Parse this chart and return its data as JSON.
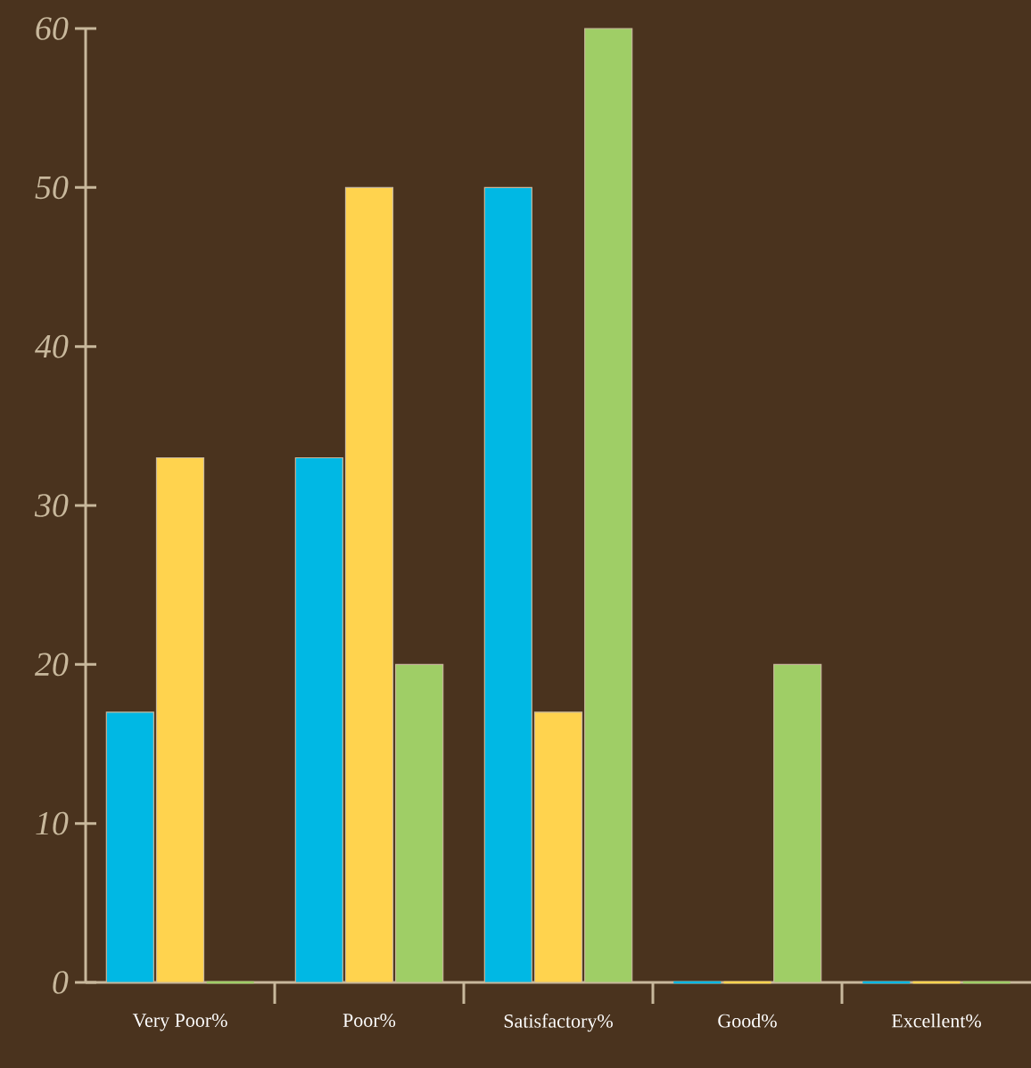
{
  "chart_data": {
    "type": "bar",
    "categories": [
      "Very Poor%",
      "Poor%",
      "Satisfactory%",
      "Good%",
      "Excellent%"
    ],
    "series": [
      {
        "color": "#00b8e4",
        "values": [
          17,
          33,
          50,
          0,
          0
        ]
      },
      {
        "color": "#ffd34e",
        "values": [
          33,
          50,
          17,
          0,
          0
        ]
      },
      {
        "color": "#9fce66",
        "values": [
          0,
          20,
          60,
          20,
          0
        ]
      }
    ],
    "ylim": [
      0,
      60
    ],
    "yticks": [
      0,
      10,
      20,
      30,
      40,
      50,
      60
    ]
  }
}
